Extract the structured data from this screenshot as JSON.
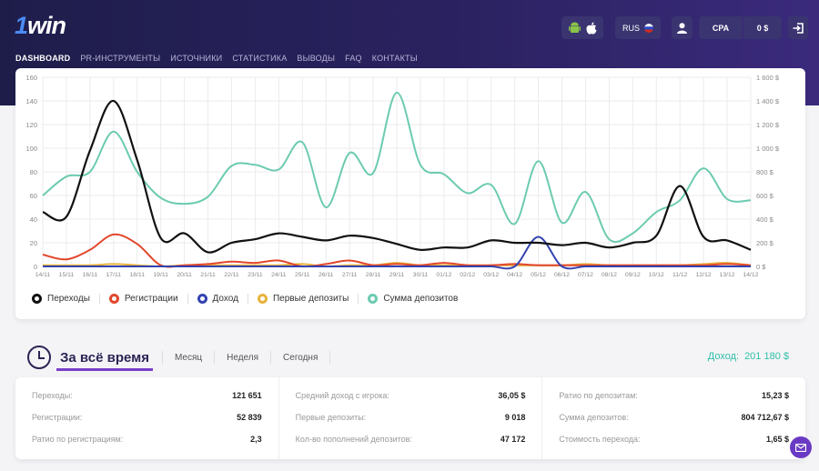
{
  "brand": {
    "logo": "1win"
  },
  "nav": [
    "DASHBOARD",
    "PR-ИНСТРУМЕНТЫ",
    "ИСТОЧНИКИ",
    "СТАТИСТИКА",
    "ВЫВОДЫ",
    "FAQ",
    "КОНТАКТЫ"
  ],
  "header": {
    "lang": "RUS",
    "cpa": "CPA",
    "balance": "0 $"
  },
  "colors": {
    "transitions": "#111111",
    "registrations": "#e2472b",
    "income": "#3443b0",
    "first_deposits": "#e8b33c",
    "deposit_sum": "#6ccbb0"
  },
  "chart_data": {
    "type": "line",
    "categories": [
      "14/11",
      "15/11",
      "16/11",
      "17/11",
      "18/11",
      "19/11",
      "20/11",
      "21/11",
      "22/11",
      "23/11",
      "24/11",
      "25/11",
      "26/11",
      "27/11",
      "28/11",
      "29/11",
      "30/11",
      "01/12",
      "02/12",
      "03/12",
      "04/12",
      "05/12",
      "06/12",
      "07/12",
      "08/12",
      "09/12",
      "10/12",
      "11/12",
      "12/12",
      "13/12",
      "14/12"
    ],
    "ylim_left": [
      0,
      160
    ],
    "yticks_left": [
      "0",
      "20",
      "40",
      "60",
      "80",
      "100",
      "120",
      "140",
      "160"
    ],
    "ylim_right": [
      0,
      1600
    ],
    "yticks_right": [
      "0 $",
      "200 $",
      "400 $",
      "600 $",
      "800 $",
      "1 000 $",
      "1 200 $",
      "1 400 $",
      "1 600 $"
    ],
    "series": [
      {
        "name": "Переходы",
        "axis": "left",
        "values": [
          46,
          42,
          98,
          140,
          90,
          24,
          28,
          12,
          20,
          23,
          28,
          25,
          22,
          26,
          24,
          19,
          14,
          16,
          16,
          22,
          20,
          20,
          18,
          20,
          16,
          20,
          26,
          68,
          25,
          22,
          14
        ]
      },
      {
        "name": "Регистрации",
        "axis": "left",
        "values": [
          10,
          6,
          14,
          27,
          19,
          1,
          1,
          2,
          4,
          3,
          5,
          0,
          2,
          5,
          1,
          2,
          1,
          3,
          1,
          1,
          2,
          1,
          1,
          1,
          1,
          1,
          1,
          1,
          1,
          2,
          1
        ]
      },
      {
        "name": "Доход",
        "axis": "left",
        "values": [
          0,
          0,
          0,
          0,
          0,
          0,
          0,
          0,
          0,
          0,
          0,
          0,
          0,
          0,
          0,
          0,
          0,
          0,
          0,
          0,
          0,
          25,
          0,
          0,
          0,
          0,
          0,
          0,
          0,
          0,
          0
        ]
      },
      {
        "name": "Первые депозиты",
        "axis": "left",
        "values": [
          1,
          1,
          1,
          2,
          1,
          0,
          1,
          1,
          1,
          1,
          1,
          2,
          0,
          1,
          1,
          3,
          1,
          1,
          1,
          1,
          1,
          1,
          1,
          2,
          1,
          1,
          1,
          1,
          2,
          3,
          1
        ]
      },
      {
        "name": "Сумма депозитов",
        "axis": "right",
        "values": [
          600,
          760,
          800,
          1140,
          800,
          580,
          530,
          590,
          850,
          860,
          820,
          1050,
          500,
          960,
          790,
          1470,
          860,
          780,
          620,
          690,
          360,
          890,
          370,
          630,
          230,
          280,
          460,
          560,
          830,
          570,
          560
        ]
      }
    ]
  },
  "period": {
    "tabs": [
      "За всё время",
      "Месяц",
      "Неделя",
      "Сегодня"
    ],
    "income_label": "Доход:",
    "income_value": "201 180 $"
  },
  "stats": {
    "col1": [
      {
        "k": "Переходы:",
        "v": "121 651"
      },
      {
        "k": "Регистрации:",
        "v": "52 839"
      },
      {
        "k": "Ратио по регистрациям:",
        "v": "2,3"
      }
    ],
    "col2": [
      {
        "k": "Средний доход с игрока:",
        "v": "36,05 $"
      },
      {
        "k": "Первые депозиты:",
        "v": "9 018"
      },
      {
        "k": "Кол-во пополнений депозитов:",
        "v": "47 172"
      }
    ],
    "col3": [
      {
        "k": "Ратио по депозитам:",
        "v": "15,23 $"
      },
      {
        "k": "Сумма депозитов:",
        "v": "804 712,67 $"
      },
      {
        "k": "Стоимость перехода:",
        "v": "1,65 $"
      }
    ]
  },
  "icons": {
    "android": "android-icon",
    "apple": "apple-icon",
    "flag": "russia-flag-icon",
    "user": "user-icon",
    "logout": "logout-icon",
    "mail": "mail-icon",
    "clock": "clock-icon"
  }
}
